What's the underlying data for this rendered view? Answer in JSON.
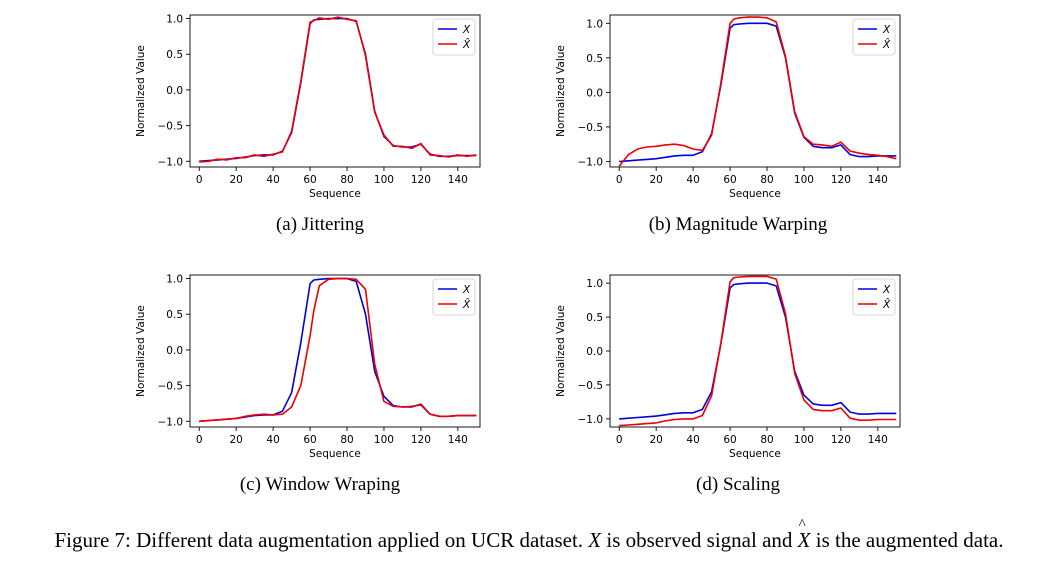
{
  "caption": {
    "prefix": "Figure 7: Different data augmentation applied on UCR dataset.",
    "var_x": "X",
    "middle": "is observed signal and",
    "var_xhat": "X",
    "suffix": "is the augmented data."
  },
  "colors": {
    "observed": "#0000dd",
    "augmented": "#ee0000"
  },
  "chart_data": [
    {
      "type": "line",
      "subcaption": "(a) Jittering",
      "xlabel": "Sequence",
      "ylabel": "Normalized Value",
      "xlim": [
        -5,
        152
      ],
      "ylim": [
        -1.08,
        1.05
      ],
      "xticks": [
        0,
        20,
        40,
        60,
        80,
        100,
        120,
        140
      ],
      "yticks": [
        1.0,
        0.5,
        0.0,
        -0.5,
        -1.0
      ],
      "legend_position": "top-right",
      "x": [
        0,
        5,
        10,
        15,
        20,
        25,
        30,
        35,
        40,
        45,
        50,
        55,
        60,
        62,
        65,
        70,
        75,
        80,
        85,
        90,
        95,
        100,
        105,
        110,
        115,
        120,
        125,
        130,
        135,
        140,
        145,
        150
      ],
      "series": [
        {
          "name": "X",
          "values": [
            -1.0,
            -0.99,
            -0.98,
            -0.97,
            -0.96,
            -0.94,
            -0.92,
            -0.91,
            -0.91,
            -0.86,
            -0.6,
            0.1,
            0.93,
            0.98,
            0.99,
            1.0,
            1.0,
            1.0,
            0.96,
            0.5,
            -0.3,
            -0.65,
            -0.78,
            -0.8,
            -0.8,
            -0.76,
            -0.9,
            -0.93,
            -0.93,
            -0.92,
            -0.92,
            -0.92
          ]
        },
        {
          "name": "X̂",
          "values": [
            -1.01,
            -1.0,
            -0.97,
            -0.98,
            -0.95,
            -0.95,
            -0.91,
            -0.93,
            -0.9,
            -0.87,
            -0.58,
            0.12,
            0.95,
            0.97,
            1.01,
            0.99,
            1.02,
            0.99,
            0.97,
            0.48,
            -0.31,
            -0.63,
            -0.79,
            -0.79,
            -0.82,
            -0.75,
            -0.91,
            -0.92,
            -0.94,
            -0.91,
            -0.93,
            -0.91
          ]
        }
      ]
    },
    {
      "type": "line",
      "subcaption": "(b) Magnitude Warping",
      "xlabel": "Sequence",
      "ylabel": "Normalized Value",
      "xlim": [
        -5,
        152
      ],
      "ylim": [
        -1.08,
        1.12
      ],
      "xticks": [
        0,
        20,
        40,
        60,
        80,
        100,
        120,
        140
      ],
      "yticks": [
        1.0,
        0.5,
        0.0,
        -0.5,
        -1.0
      ],
      "legend_position": "top-right",
      "x": [
        0,
        5,
        10,
        15,
        20,
        25,
        30,
        35,
        40,
        45,
        50,
        55,
        60,
        62,
        65,
        70,
        75,
        80,
        85,
        90,
        95,
        100,
        105,
        110,
        115,
        120,
        125,
        130,
        135,
        140,
        145,
        150
      ],
      "series": [
        {
          "name": "X",
          "values": [
            -1.0,
            -0.99,
            -0.98,
            -0.97,
            -0.96,
            -0.94,
            -0.92,
            -0.91,
            -0.91,
            -0.86,
            -0.6,
            0.1,
            0.93,
            0.98,
            0.99,
            1.0,
            1.0,
            1.0,
            0.96,
            0.5,
            -0.3,
            -0.65,
            -0.78,
            -0.8,
            -0.8,
            -0.76,
            -0.9,
            -0.93,
            -0.93,
            -0.92,
            -0.92,
            -0.92
          ]
        },
        {
          "name": "X̂",
          "values": [
            -1.07,
            -0.9,
            -0.82,
            -0.79,
            -0.78,
            -0.76,
            -0.75,
            -0.77,
            -0.82,
            -0.84,
            -0.62,
            0.13,
            1.0,
            1.06,
            1.08,
            1.09,
            1.09,
            1.08,
            1.02,
            0.52,
            -0.28,
            -0.64,
            -0.75,
            -0.76,
            -0.78,
            -0.72,
            -0.85,
            -0.88,
            -0.9,
            -0.91,
            -0.93,
            -0.96
          ]
        }
      ]
    },
    {
      "type": "line",
      "subcaption": "(c) Window Wraping",
      "xlabel": "Sequence",
      "ylabel": "Normalized Value",
      "xlim": [
        -5,
        152
      ],
      "ylim": [
        -1.08,
        1.05
      ],
      "xticks": [
        0,
        20,
        40,
        60,
        80,
        100,
        120,
        140
      ],
      "yticks": [
        1.0,
        0.5,
        0.0,
        -0.5,
        -1.0
      ],
      "legend_position": "top-right",
      "x": [
        0,
        5,
        10,
        15,
        20,
        25,
        30,
        35,
        40,
        45,
        50,
        55,
        60,
        62,
        65,
        70,
        75,
        80,
        85,
        90,
        95,
        100,
        105,
        110,
        115,
        120,
        125,
        130,
        135,
        140,
        145,
        150
      ],
      "series": [
        {
          "name": "X",
          "values": [
            -1.0,
            -0.99,
            -0.98,
            -0.97,
            -0.96,
            -0.94,
            -0.92,
            -0.91,
            -0.91,
            -0.86,
            -0.6,
            0.1,
            0.93,
            0.98,
            0.99,
            1.0,
            1.0,
            1.0,
            0.96,
            0.5,
            -0.3,
            -0.65,
            -0.78,
            -0.8,
            -0.8,
            -0.76,
            -0.9,
            -0.93,
            -0.93,
            -0.92,
            -0.92,
            -0.92
          ]
        },
        {
          "name": "X̂",
          "values": [
            -1.0,
            -0.99,
            -0.98,
            -0.97,
            -0.96,
            -0.93,
            -0.91,
            -0.9,
            -0.91,
            -0.9,
            -0.8,
            -0.5,
            0.2,
            0.55,
            0.9,
            0.99,
            1.0,
            1.0,
            0.99,
            0.85,
            -0.2,
            -0.72,
            -0.79,
            -0.8,
            -0.79,
            -0.77,
            -0.9,
            -0.93,
            -0.93,
            -0.92,
            -0.92,
            -0.92
          ]
        }
      ]
    },
    {
      "type": "line",
      "subcaption": "(d) Scaling",
      "xlabel": "Sequence",
      "ylabel": "Normalized Value",
      "xlim": [
        -5,
        152
      ],
      "ylim": [
        -1.12,
        1.12
      ],
      "xticks": [
        0,
        20,
        40,
        60,
        80,
        100,
        120,
        140
      ],
      "yticks": [
        1.0,
        0.5,
        0.0,
        -0.5,
        -1.0
      ],
      "legend_position": "top-right",
      "x": [
        0,
        5,
        10,
        15,
        20,
        25,
        30,
        35,
        40,
        45,
        50,
        55,
        60,
        62,
        65,
        70,
        75,
        80,
        85,
        90,
        95,
        100,
        105,
        110,
        115,
        120,
        125,
        130,
        135,
        140,
        145,
        150
      ],
      "series": [
        {
          "name": "X",
          "values": [
            -1.0,
            -0.99,
            -0.98,
            -0.97,
            -0.96,
            -0.94,
            -0.92,
            -0.91,
            -0.91,
            -0.86,
            -0.6,
            0.1,
            0.93,
            0.98,
            0.99,
            1.0,
            1.0,
            1.0,
            0.96,
            0.5,
            -0.3,
            -0.65,
            -0.78,
            -0.8,
            -0.8,
            -0.76,
            -0.9,
            -0.93,
            -0.93,
            -0.92,
            -0.92,
            -0.92
          ]
        },
        {
          "name": "X̂",
          "values": [
            -1.1,
            -1.09,
            -1.08,
            -1.07,
            -1.06,
            -1.03,
            -1.01,
            -1.0,
            -1.0,
            -0.95,
            -0.66,
            0.11,
            1.02,
            1.08,
            1.09,
            1.1,
            1.1,
            1.1,
            1.06,
            0.55,
            -0.33,
            -0.72,
            -0.86,
            -0.88,
            -0.88,
            -0.84,
            -0.99,
            -1.02,
            -1.02,
            -1.01,
            -1.01,
            -1.01
          ]
        }
      ]
    }
  ]
}
